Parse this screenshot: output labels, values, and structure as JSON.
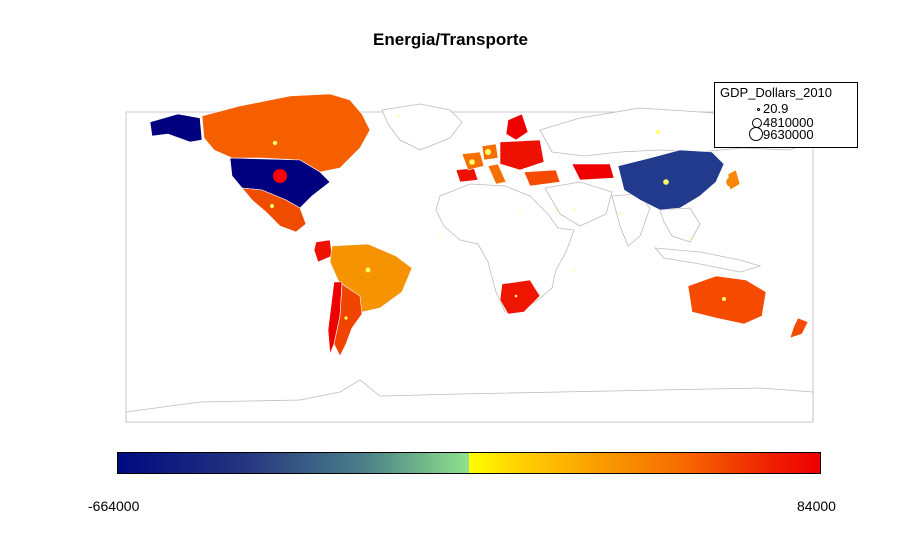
{
  "title": "Energia/Transporte",
  "legend": {
    "title": "GDP_Dollars_2010",
    "entries": [
      "20.9",
      "4810000",
      "9630000"
    ]
  },
  "colorbar": {
    "min_label": "-664000",
    "max_label": "84000",
    "palette": [
      "#000a80",
      "#4a7f88",
      "#8fe28c",
      "#ffff00",
      "#f9a000",
      "#ee0000"
    ]
  },
  "colors": {
    "usa": "#00007f",
    "alaska": "#00007f",
    "china": "#213a8c",
    "canada": "#f55f00",
    "brazil": "#f59300",
    "australia": "#f54a00",
    "mexico": "#ef4c00",
    "argentina": "#f04400",
    "chile": "#ee0000",
    "south_africa": "#ef1500",
    "japan": "#f58800",
    "europe_red": "#ee1000",
    "europe_orange": "#f57000",
    "bubble": "#ffff66",
    "bubble_usa": "#ff0000"
  }
}
